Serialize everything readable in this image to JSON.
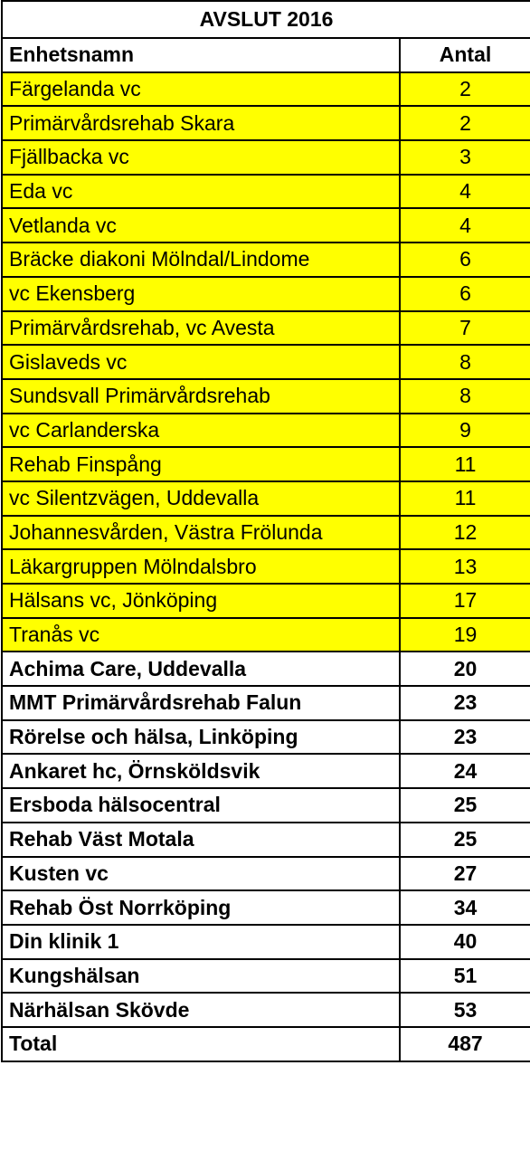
{
  "title": "AVSLUT 2016",
  "header": {
    "name": "Enhetsnamn",
    "count": "Antal"
  },
  "highlight_color": "#ffff00",
  "rows": [
    {
      "name": "Färgelanda vc",
      "count": "2",
      "highlight": true
    },
    {
      "name": "Primärvårdsrehab Skara",
      "count": "2",
      "highlight": true
    },
    {
      "name": "Fjällbacka vc",
      "count": "3",
      "highlight": true
    },
    {
      "name": "Eda vc",
      "count": "4",
      "highlight": true
    },
    {
      "name": "Vetlanda vc",
      "count": "4",
      "highlight": true
    },
    {
      "name": "Bräcke diakoni Mölndal/Lindome",
      "count": "6",
      "highlight": true
    },
    {
      "name": "vc Ekensberg",
      "count": "6",
      "highlight": true
    },
    {
      "name": "Primärvårdsrehab, vc Avesta",
      "count": "7",
      "highlight": true
    },
    {
      "name": "Gislaveds vc",
      "count": "8",
      "highlight": true
    },
    {
      "name": "Sundsvall Primärvårdsrehab",
      "count": "8",
      "highlight": true
    },
    {
      "name": "vc Carlanderska",
      "count": "9",
      "highlight": true
    },
    {
      "name": "Rehab Finspång",
      "count": "11",
      "highlight": true
    },
    {
      "name": "vc Silentzvägen, Uddevalla",
      "count": "11",
      "highlight": true
    },
    {
      "name": "Johannesvården, Västra Frölunda",
      "count": "12",
      "highlight": true
    },
    {
      "name": "Läkargruppen Mölndalsbro",
      "count": "13",
      "highlight": true
    },
    {
      "name": "Hälsans vc, Jönköping",
      "count": "17",
      "highlight": true
    },
    {
      "name": "Tranås vc",
      "count": "19",
      "highlight": true
    },
    {
      "name": "Achima Care, Uddevalla",
      "count": "20",
      "highlight": false
    },
    {
      "name": "MMT Primärvårdsrehab Falun",
      "count": "23",
      "highlight": false
    },
    {
      "name": "Rörelse och hälsa, Linköping",
      "count": "23",
      "highlight": false
    },
    {
      "name": "Ankaret hc, Örnsköldsvik",
      "count": "24",
      "highlight": false
    },
    {
      "name": "Ersboda hälsocentral",
      "count": "25",
      "highlight": false
    },
    {
      "name": "Rehab Väst Motala",
      "count": "25",
      "highlight": false
    },
    {
      "name": "Kusten vc",
      "count": "27",
      "highlight": false
    },
    {
      "name": "Rehab Öst Norrköping",
      "count": "34",
      "highlight": false
    },
    {
      "name": "Din klinik 1",
      "count": "40",
      "highlight": false
    },
    {
      "name": "Kungshälsan",
      "count": "51",
      "highlight": false
    },
    {
      "name": "Närhälsan Skövde",
      "count": "53",
      "highlight": false
    }
  ],
  "total": {
    "label": "Total",
    "count": "487"
  }
}
